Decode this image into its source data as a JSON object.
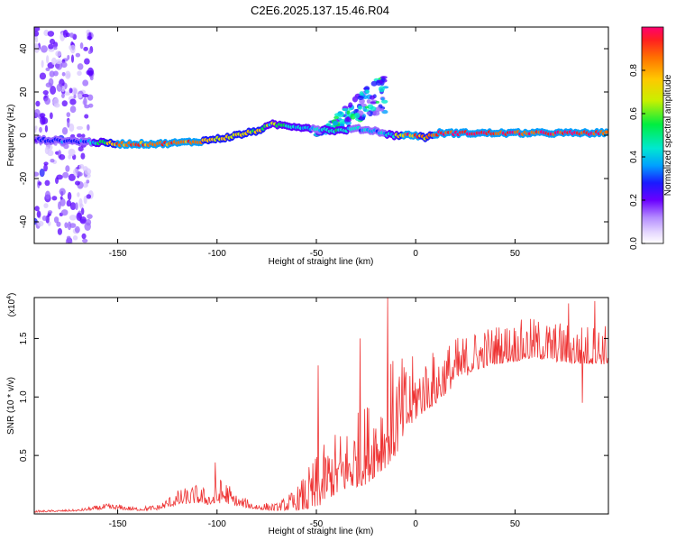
{
  "title": "C2E6.2025.137.15.46.R04",
  "colors": {
    "line": "#ee3333",
    "axis": "#000000"
  },
  "chart_data": [
    {
      "type": "heatmap",
      "name": "spectrogram",
      "xlabel": "Height of straight line (km)",
      "ylabel": "Frequency (Hz)",
      "xlim": [
        -192,
        97
      ],
      "ylim": [
        -50,
        50
      ],
      "xticks": [
        -150,
        -100,
        -50,
        0,
        50
      ],
      "yticks": [
        -40,
        -20,
        0,
        20,
        40
      ],
      "colorbar": {
        "label": "Normalized spectral amplitude",
        "range": [
          0,
          1
        ],
        "ticks": [
          0.0,
          0.2,
          0.4,
          0.6,
          0.8
        ],
        "colormap": [
          "#ffffff",
          "#d9c8ff",
          "#9a66ff",
          "#5a00ff",
          "#1a1aff",
          "#00a0ff",
          "#00e8d0",
          "#00ee40",
          "#c8f000",
          "#ffc800",
          "#ff7000",
          "#ff2020",
          "#ff0070"
        ]
      },
      "features": [
        {
          "label": "noise band",
          "x_range": [
            -192,
            -163
          ],
          "freq_range": [
            -50,
            50
          ],
          "amplitude": 0.15
        },
        {
          "label": "dominant-frequency trace",
          "x": [
            -192,
            -165,
            -150,
            -130,
            -110,
            -95,
            -80,
            -72,
            -60,
            -50,
            -40,
            -30,
            -20,
            -12,
            -5,
            0,
            5,
            12,
            30,
            60,
            97
          ],
          "freq": [
            -2,
            -3,
            -4,
            -4,
            -3,
            -1,
            2,
            5,
            4,
            3,
            2,
            3,
            2,
            0,
            0,
            0,
            -1,
            1,
            1,
            1,
            1
          ],
          "amplitude": [
            0.3,
            0.4,
            0.85,
            0.85,
            0.85,
            0.75,
            0.7,
            0.6,
            0.5,
            0.45,
            0.5,
            0.45,
            0.4,
            0.5,
            0.9,
            0.9,
            0.7,
            0.95,
            0.95,
            0.95,
            0.95
          ]
        },
        {
          "label": "rising harmonic branches",
          "x_range": [
            -50,
            -15
          ],
          "freq_range": [
            0,
            31
          ],
          "amplitude": 0.3
        }
      ]
    },
    {
      "type": "line",
      "name": "snr",
      "xlabel": "Height of straight line (km)",
      "ylabel": "SNR (10 * v/v)",
      "scale_label": "(x10",
      "scale_exp": "4",
      "xlim": [
        -192,
        97
      ],
      "ylim": [
        0,
        1.85
      ],
      "xticks": [
        -150,
        -100,
        -50,
        0,
        50
      ],
      "yticks": [
        0.5,
        1.0,
        1.5
      ],
      "ytick_labels": [
        "0.5",
        "1.0",
        "1.5"
      ],
      "envelope": {
        "x": [
          -192,
          -170,
          -155,
          -140,
          -130,
          -120,
          -110,
          -103,
          -97,
          -90,
          -80,
          -70,
          -60,
          -50,
          -45,
          -40,
          -35,
          -30,
          -25,
          -20,
          -15,
          -10,
          -5,
          0,
          5,
          10,
          20,
          30,
          40,
          60,
          80,
          97
        ],
        "base": [
          0.02,
          0.03,
          0.06,
          0.04,
          0.05,
          0.12,
          0.15,
          0.12,
          0.18,
          0.1,
          0.06,
          0.05,
          0.1,
          0.2,
          0.3,
          0.35,
          0.4,
          0.45,
          0.5,
          0.6,
          0.7,
          0.8,
          0.9,
          1.0,
          1.05,
          1.1,
          1.25,
          1.35,
          1.4,
          1.45,
          1.4,
          1.4
        ],
        "amp": [
          0.01,
          0.01,
          0.03,
          0.02,
          0.03,
          0.08,
          0.1,
          0.08,
          0.15,
          0.06,
          0.04,
          0.04,
          0.12,
          0.3,
          0.3,
          0.35,
          0.35,
          0.4,
          0.45,
          0.5,
          0.55,
          0.55,
          0.4,
          0.35,
          0.3,
          0.3,
          0.25,
          0.22,
          0.22,
          0.22,
          0.22,
          0.22
        ]
      },
      "peaks": [
        {
          "x": -101,
          "y": 0.44
        },
        {
          "x": -49,
          "y": 1.27
        },
        {
          "x": -14,
          "y": 1.85
        },
        {
          "x": -28,
          "y": 1.5
        },
        {
          "x": 77,
          "y": 1.8
        },
        {
          "x": 90,
          "y": 1.82
        },
        {
          "x": 84,
          "y": 0.95
        }
      ]
    }
  ]
}
